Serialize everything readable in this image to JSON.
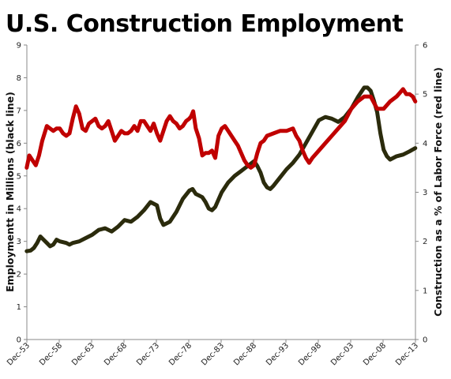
{
  "chart_data": {
    "type": "line",
    "title": "U.S. Construction Employment",
    "ylabel": "Employmentt in Millions (black line)",
    "y2label": "Construction as a % of Labor Force (red line)",
    "xlabel": "",
    "x_ticks": [
      "Dec-53",
      "Dec-58",
      "Dec-63",
      "Dec-68",
      "Dec-73",
      "Dec-78",
      "Dec-83",
      "Dec-88",
      "Dec-93",
      "Dec-98",
      "Dec-03",
      "Dec-08",
      "Dec-13"
    ],
    "x_range": [
      1953.92,
      2013.92
    ],
    "ylim": [
      0,
      9
    ],
    "y_ticks": [
      "0",
      "1",
      "2",
      "3",
      "4",
      "5",
      "6",
      "7",
      "8",
      "9"
    ],
    "y2lim": [
      0,
      6
    ],
    "y2_ticks": [
      "0",
      "1",
      "2",
      "3",
      "4",
      "5",
      "6"
    ],
    "grid": false,
    "series": [
      {
        "axis": "left",
        "color": "#2b2b0c",
        "x": [
          1953.9,
          1954.5,
          1955.0,
          1955.5,
          1956.0,
          1956.5,
          1957.0,
          1957.5,
          1958.0,
          1958.5,
          1959.0,
          1960.0,
          1960.5,
          1961.0,
          1962.0,
          1963.0,
          1964.0,
          1965.0,
          1966.0,
          1967.0,
          1968.0,
          1969.0,
          1970.0,
          1971.0,
          1972.0,
          1973.0,
          1974.0,
          1974.5,
          1975.0,
          1975.5,
          1976.0,
          1977.0,
          1978.0,
          1979.0,
          1979.5,
          1980.0,
          1980.5,
          1981.0,
          1981.5,
          1982.0,
          1982.5,
          1983.0,
          1984.0,
          1985.0,
          1986.0,
          1987.0,
          1988.0,
          1989.0,
          1989.5,
          1990.0,
          1990.5,
          1991.0,
          1991.5,
          1992.0,
          1993.0,
          1994.0,
          1995.0,
          1996.0,
          1997.0,
          1998.0,
          1999.0,
          2000.0,
          2001.0,
          2002.0,
          2003.0,
          2004.0,
          2005.0,
          2006.0,
          2006.5,
          2007.0,
          2007.5,
          2008.0,
          2008.5,
          2009.0,
          2009.5,
          2010.0,
          2010.5,
          2011.0,
          2012.0,
          2013.0,
          2013.9
        ],
        "y": [
          2.7,
          2.72,
          2.8,
          2.95,
          3.15,
          3.05,
          2.95,
          2.85,
          2.9,
          3.05,
          3.0,
          2.95,
          2.9,
          2.95,
          3.0,
          3.1,
          3.2,
          3.35,
          3.4,
          3.3,
          3.45,
          3.65,
          3.6,
          3.75,
          3.95,
          4.2,
          4.1,
          3.7,
          3.5,
          3.55,
          3.6,
          3.9,
          4.3,
          4.55,
          4.6,
          4.45,
          4.4,
          4.35,
          4.2,
          4.0,
          3.95,
          4.05,
          4.5,
          4.8,
          5.0,
          5.15,
          5.3,
          5.45,
          5.3,
          5.1,
          4.8,
          4.65,
          4.6,
          4.7,
          4.95,
          5.2,
          5.4,
          5.65,
          6.0,
          6.35,
          6.7,
          6.8,
          6.75,
          6.65,
          6.8,
          7.05,
          7.4,
          7.7,
          7.7,
          7.6,
          7.3,
          6.95,
          6.3,
          5.8,
          5.6,
          5.5,
          5.55,
          5.6,
          5.65,
          5.75,
          5.85
        ]
      },
      {
        "axis": "right",
        "color": "#c00000",
        "x": [
          1953.9,
          1954.3,
          1954.8,
          1955.3,
          1955.8,
          1956.3,
          1957.0,
          1957.5,
          1958.0,
          1958.5,
          1959.0,
          1959.5,
          1960.0,
          1960.5,
          1961.0,
          1961.5,
          1962.0,
          1962.5,
          1963.0,
          1963.5,
          1964.0,
          1964.5,
          1965.0,
          1965.5,
          1966.0,
          1966.5,
          1967.0,
          1967.5,
          1968.0,
          1968.5,
          1969.0,
          1969.5,
          1970.0,
          1970.5,
          1971.0,
          1971.5,
          1972.0,
          1972.5,
          1973.0,
          1973.5,
          1974.0,
          1974.5,
          1975.0,
          1975.5,
          1976.0,
          1976.5,
          1977.0,
          1977.5,
          1978.0,
          1978.5,
          1979.0,
          1979.3,
          1979.6,
          1980.0,
          1980.5,
          1981.0,
          1981.5,
          1982.0,
          1982.5,
          1983.0,
          1983.5,
          1984.0,
          1984.5,
          1985.0,
          1985.5,
          1986.0,
          1986.5,
          1987.0,
          1987.5,
          1988.0,
          1988.5,
          1989.0,
          1989.5,
          1990.0,
          1990.5,
          1991.0,
          1992.0,
          1993.0,
          1994.0,
          1995.0,
          1995.5,
          1996.0,
          1996.5,
          1997.0,
          1997.5,
          1998.0,
          1999.0,
          2000.0,
          2001.0,
          2002.0,
          2003.0,
          2004.0,
          2005.0,
          2006.0,
          2007.0,
          2008.0,
          2009.0,
          2010.0,
          2011.0,
          2012.0,
          2012.5,
          2013.0,
          2013.5,
          2013.9
        ],
        "y": [
          3.5,
          3.75,
          3.65,
          3.55,
          3.75,
          4.05,
          4.35,
          4.3,
          4.25,
          4.3,
          4.3,
          4.2,
          4.15,
          4.2,
          4.5,
          4.75,
          4.6,
          4.3,
          4.25,
          4.4,
          4.45,
          4.5,
          4.35,
          4.3,
          4.35,
          4.45,
          4.25,
          4.05,
          4.15,
          4.25,
          4.2,
          4.2,
          4.25,
          4.35,
          4.25,
          4.45,
          4.45,
          4.35,
          4.25,
          4.4,
          4.2,
          4.05,
          4.25,
          4.45,
          4.55,
          4.45,
          4.4,
          4.3,
          4.35,
          4.45,
          4.5,
          4.55,
          4.65,
          4.3,
          4.1,
          3.75,
          3.8,
          3.8,
          3.85,
          3.7,
          4.15,
          4.3,
          4.35,
          4.25,
          4.15,
          4.05,
          3.95,
          3.8,
          3.65,
          3.55,
          3.5,
          3.55,
          3.8,
          4.0,
          4.05,
          4.15,
          4.2,
          4.25,
          4.25,
          4.3,
          4.15,
          4.05,
          3.85,
          3.7,
          3.6,
          3.7,
          3.85,
          4.0,
          4.15,
          4.3,
          4.45,
          4.7,
          4.85,
          4.95,
          4.95,
          4.7,
          4.7,
          4.85,
          4.95,
          5.1,
          5.0,
          5.0,
          4.95,
          4.85
        ]
      }
    ]
  }
}
